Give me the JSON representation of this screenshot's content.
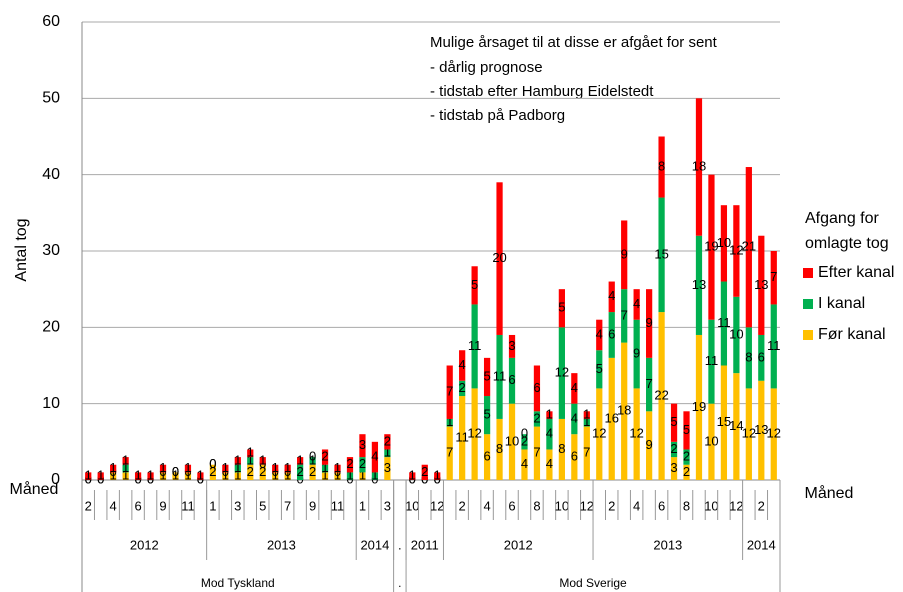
{
  "chart_data": {
    "type": "stacked_bar",
    "ylabel": "Antal tog",
    "month_axis_labels": [
      "Måned",
      "Måned"
    ],
    "annotation": [
      "Mulige årsaget til at disse er afgået for sent",
      "- dårlig prognose",
      "- tidstab efter Hamburg Eidelstedt",
      "- tidstab på Padborg"
    ],
    "legend_title": [
      "Afgang for",
      "omlagte tog"
    ],
    "ylim": [
      0,
      60
    ],
    "yticks": [
      0,
      10,
      20,
      30,
      40,
      50,
      60
    ],
    "grid": true,
    "groups": [
      {
        "label": "Mod Tyskland",
        "years": [
          {
            "label": "2012",
            "months": [
              "2",
              null,
              "4",
              null,
              "6",
              null,
              "9",
              null,
              "11",
              null
            ]
          },
          {
            "label": "2013",
            "months": [
              "1",
              null,
              "3",
              null,
              "5",
              null,
              "7",
              null,
              "9",
              null,
              "11",
              null
            ]
          },
          {
            "label": "2014",
            "months": [
              "1",
              null,
              "3"
            ]
          }
        ]
      },
      {
        "label": ".",
        "years": [
          {
            "label": ".",
            "months": [
              null
            ]
          }
        ]
      },
      {
        "label": "Mod Sverige",
        "years": [
          {
            "label": "2011",
            "months": [
              "10",
              null,
              "12"
            ]
          },
          {
            "label": "2012",
            "months": [
              null,
              "2",
              null,
              "4",
              null,
              "6",
              null,
              "8",
              null,
              "10",
              null,
              "12"
            ]
          },
          {
            "label": "2013",
            "months": [
              null,
              "2",
              null,
              "4",
              null,
              "6",
              null,
              "8",
              null,
              "10",
              null,
              "12"
            ]
          },
          {
            "label": "2014",
            "months": [
              null,
              "2",
              null
            ]
          }
        ]
      }
    ],
    "series": [
      {
        "name": "Før kanal",
        "color": "#FFC000",
        "values": [
          0,
          0,
          1,
          1,
          0,
          0,
          1,
          1,
          1,
          0,
          2,
          1,
          1,
          2,
          2,
          1,
          1,
          0,
          2,
          1,
          1,
          0,
          1,
          0,
          3,
          null,
          0,
          0,
          0,
          7,
          11,
          12,
          6,
          8,
          10,
          4,
          7,
          4,
          8,
          6,
          7,
          12,
          16,
          18,
          12,
          9,
          22,
          3,
          2,
          19,
          10,
          15,
          14,
          12,
          13,
          12
        ]
      },
      {
        "name": "I kanal",
        "color": "#00B050",
        "values": [
          0,
          0,
          0,
          1,
          0,
          0,
          0,
          0,
          0,
          0,
          0,
          0,
          1,
          1,
          0,
          0,
          0,
          2,
          1,
          1,
          0,
          1,
          2,
          1,
          1,
          null,
          0,
          0,
          0,
          1,
          2,
          11,
          5,
          11,
          6,
          2,
          2,
          4,
          12,
          4,
          1,
          5,
          6,
          7,
          9,
          7,
          15,
          2,
          2,
          13,
          11,
          11,
          10,
          8,
          6,
          11
        ]
      },
      {
        "name": "Efter kanal",
        "color": "#FF0000",
        "values": [
          1,
          1,
          1,
          1,
          1,
          1,
          1,
          0,
          1,
          1,
          0,
          1,
          1,
          1,
          1,
          1,
          1,
          1,
          0,
          2,
          1,
          2,
          3,
          4,
          2,
          null,
          1,
          2,
          1,
          7,
          4,
          5,
          5,
          20,
          3,
          0,
          6,
          1,
          5,
          4,
          1,
          4,
          4,
          9,
          4,
          9,
          8,
          5,
          5,
          18,
          19,
          10,
          12,
          21,
          13,
          7
        ]
      }
    ]
  }
}
